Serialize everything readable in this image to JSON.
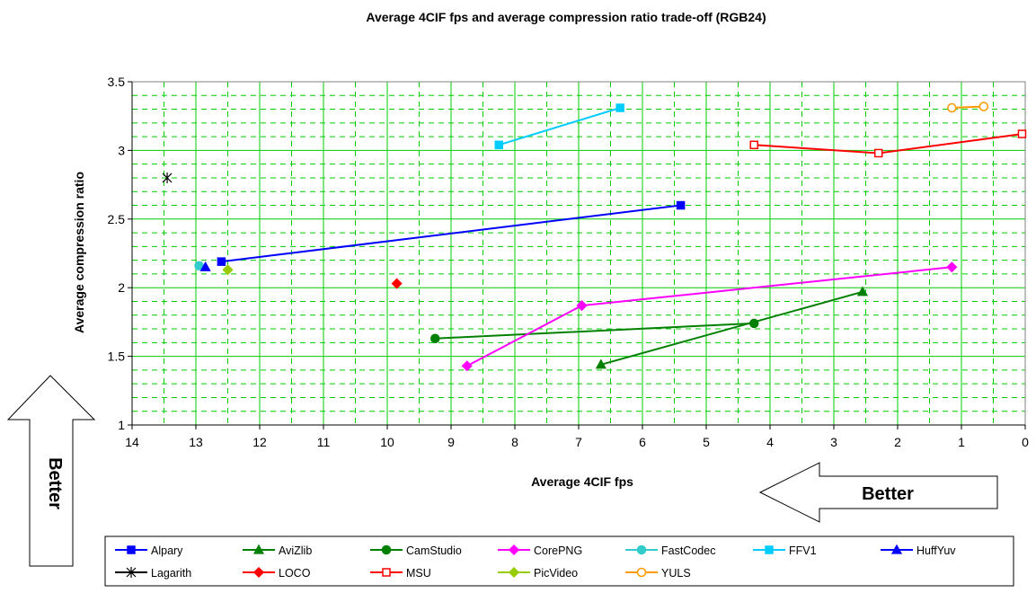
{
  "chart_data": {
    "type": "line",
    "title": "Average 4CIF  fps and average compression ratio trade-off (RGB24)",
    "xlabel": "Average 4CIF  fps",
    "ylabel": "Average compression ratio",
    "xlim": [
      14,
      0
    ],
    "ylim": [
      1,
      3.5
    ],
    "x_reversed": true,
    "x_ticks": [
      14,
      13,
      12,
      11,
      10,
      9,
      8,
      7,
      6,
      5,
      4,
      3,
      2,
      1,
      0
    ],
    "y_ticks": [
      1,
      1.5,
      2,
      2.5,
      3,
      3.5
    ],
    "y_tick_labels": [
      "1",
      "1.5",
      "2",
      "2.5",
      "3",
      "3.5"
    ],
    "grid": "major and minor",
    "legend_position": "bottom",
    "series": [
      {
        "name": "Alpary",
        "color": "#0000FF",
        "marker": "square",
        "filled": true,
        "points": [
          [
            12.6,
            2.19
          ],
          [
            5.4,
            2.6
          ]
        ]
      },
      {
        "name": "AviZlib",
        "color": "#008000",
        "marker": "triangle",
        "filled": true,
        "points": [
          [
            6.65,
            1.44
          ],
          [
            2.55,
            1.97
          ]
        ]
      },
      {
        "name": "CamStudio",
        "color": "#008000",
        "marker": "circle",
        "filled": true,
        "points": [
          [
            9.25,
            1.63
          ],
          [
            4.25,
            1.74
          ]
        ]
      },
      {
        "name": "CorePNG",
        "color": "#FF00FF",
        "marker": "diamond",
        "filled": true,
        "points": [
          [
            8.75,
            1.43
          ],
          [
            6.95,
            1.87
          ],
          [
            1.15,
            2.15
          ]
        ]
      },
      {
        "name": "FastCodec",
        "color": "#33CCCC",
        "marker": "circle",
        "filled": true,
        "points": [
          [
            12.95,
            2.16
          ]
        ]
      },
      {
        "name": "FFV1",
        "color": "#00CCFF",
        "marker": "square",
        "filled": true,
        "points": [
          [
            8.25,
            3.04
          ],
          [
            6.35,
            3.31
          ]
        ]
      },
      {
        "name": "HuffYuv",
        "color": "#0000FF",
        "marker": "triangle",
        "filled": true,
        "points": [
          [
            12.85,
            2.15
          ]
        ]
      },
      {
        "name": "Lagarith",
        "color": "#000000",
        "marker": "star",
        "filled": false,
        "points": [
          [
            13.45,
            2.8
          ]
        ]
      },
      {
        "name": "LOCO",
        "color": "#FF0000",
        "marker": "diamond",
        "filled": true,
        "points": [
          [
            9.85,
            2.03
          ]
        ]
      },
      {
        "name": "MSU",
        "color": "#FF0000",
        "marker": "square",
        "filled": false,
        "points": [
          [
            4.25,
            3.04
          ],
          [
            2.3,
            2.98
          ],
          [
            0.05,
            3.12
          ]
        ]
      },
      {
        "name": "PicVideo",
        "color": "#99CC00",
        "marker": "diamond",
        "filled": true,
        "points": [
          [
            12.5,
            2.13
          ]
        ]
      },
      {
        "name": "YULS",
        "color": "#FF9900",
        "marker": "circle",
        "filled": false,
        "points": [
          [
            1.15,
            3.31
          ],
          [
            0.65,
            3.32
          ]
        ]
      }
    ]
  },
  "annotations": {
    "better_vertical": "Better",
    "better_horizontal": "Better"
  }
}
